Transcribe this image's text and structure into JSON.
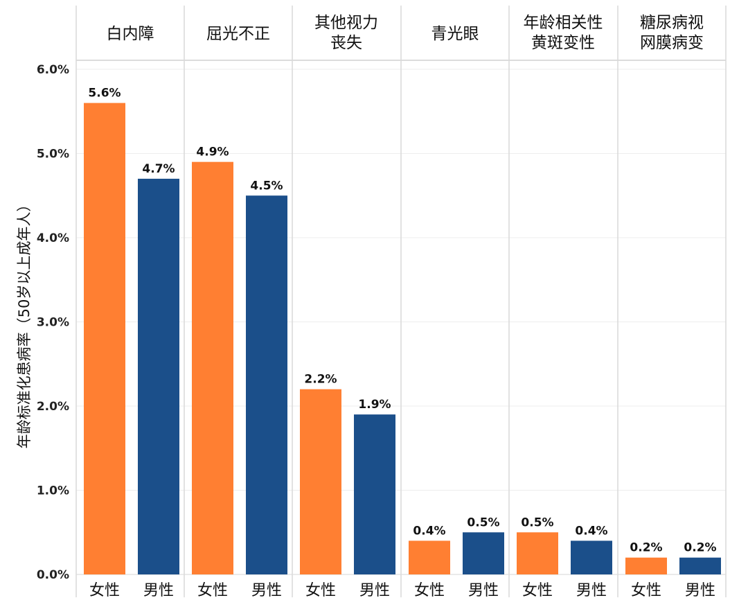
{
  "chart_data": {
    "type": "bar",
    "ylabel": "年龄标准化患病率（50岁以上成年人）",
    "ylim": [
      0,
      6
    ],
    "yticks": [
      "0.0%",
      "1.0%",
      "2.0%",
      "3.0%",
      "4.0%",
      "5.0%",
      "6.0%"
    ],
    "grid": true,
    "categories": [
      {
        "label_lines": [
          "白内障"
        ]
      },
      {
        "label_lines": [
          "屈光不正"
        ]
      },
      {
        "label_lines": [
          "其他视力",
          "丧失"
        ]
      },
      {
        "label_lines": [
          "青光眼"
        ]
      },
      {
        "label_lines": [
          "年龄相关性",
          "黄斑变性"
        ]
      },
      {
        "label_lines": [
          "糖尿病视",
          "网膜病变"
        ]
      }
    ],
    "series": [
      {
        "name": "女性",
        "color": "#FF7F32",
        "values": [
          5.6,
          4.9,
          2.2,
          0.4,
          0.5,
          0.2
        ],
        "labels": [
          "5.6%",
          "4.9%",
          "2.2%",
          "0.4%",
          "0.5%",
          "0.2%"
        ]
      },
      {
        "name": "男性",
        "color": "#1B4F8A",
        "values": [
          4.7,
          4.5,
          1.9,
          0.5,
          0.4,
          0.2
        ],
        "labels": [
          "4.7%",
          "4.5%",
          "1.9%",
          "0.5%",
          "0.4%",
          "0.2%"
        ]
      }
    ]
  }
}
